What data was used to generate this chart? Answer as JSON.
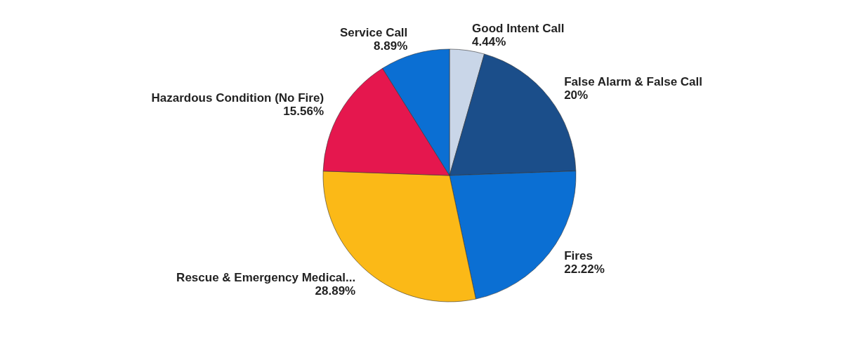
{
  "chart_data": {
    "type": "pie",
    "categories": [
      "Good Intent Call",
      "False Alarm & False Call",
      "Fires",
      "Rescue & Emergency Medical...",
      "Hazardous Condition (No Fire)",
      "Service Call"
    ],
    "values": [
      4.44,
      20,
      22.22,
      28.89,
      15.56,
      8.89
    ],
    "value_labels": [
      "4.44%",
      "20%",
      "22.22%",
      "28.89%",
      "15.56%",
      "8.89%"
    ],
    "colors": [
      "#c9d6e8",
      "#1b4e8a",
      "#0b6fd3",
      "#fbb917",
      "#e5174e",
      "#0b6fd3"
    ]
  }
}
